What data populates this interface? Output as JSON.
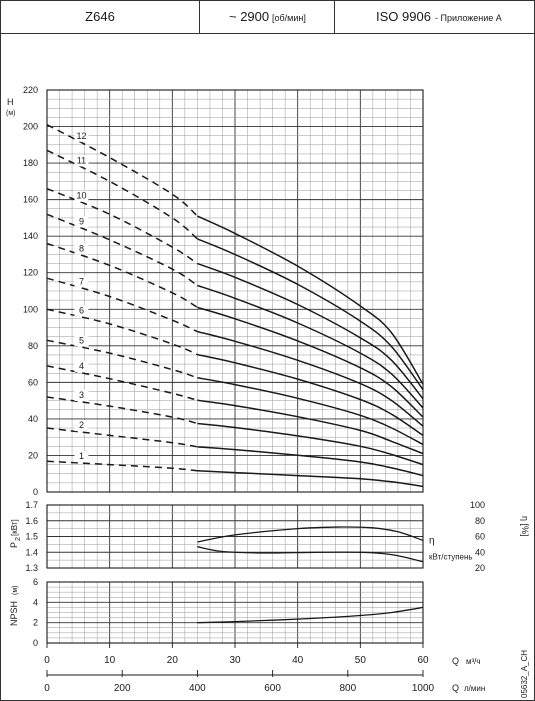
{
  "header": {
    "model": "Z646",
    "speed_value": "~ 2900",
    "speed_unit": "[об/мин]",
    "standard": "ISO 9906",
    "standard_note": "- Приложение А"
  },
  "side_code": "05632_A_CH",
  "colors": {
    "ink": "#1a1a1a",
    "grid_major": "#333333",
    "grid_minor": "#9a9a9a",
    "background": "#ffffff"
  },
  "chart_data": [
    {
      "id": "head",
      "type": "line",
      "ylabel": "H",
      "yunit": "(м)",
      "xlim": [
        0,
        60
      ],
      "ylim": [
        0,
        220
      ],
      "yticks": [
        0,
        20,
        40,
        60,
        80,
        100,
        120,
        140,
        160,
        180,
        200,
        220
      ],
      "grid": true,
      "operating_range_q": [
        24,
        60
      ],
      "series": [
        {
          "name": "1",
          "x": [
            0,
            10,
            20,
            24,
            30,
            40,
            50,
            55,
            60
          ],
          "y": [
            16.8,
            15.0,
            13.0,
            11.6,
            10.6,
            9.0,
            7.2,
            5.6,
            3.0
          ]
        },
        {
          "name": "2",
          "x": [
            0,
            10,
            20,
            24,
            30,
            40,
            50,
            55,
            60
          ],
          "y": [
            35.0,
            31.0,
            27.0,
            24.7,
            23.2,
            20.1,
            16.4,
            13.2,
            9.0
          ]
        },
        {
          "name": "3",
          "x": [
            0,
            10,
            20,
            24,
            30,
            40,
            50,
            55,
            60
          ],
          "y": [
            52.0,
            47.0,
            41.0,
            37.5,
            35.3,
            30.7,
            25.0,
            20.5,
            15.0
          ]
        },
        {
          "name": "4",
          "x": [
            0,
            10,
            20,
            24,
            30,
            40,
            50,
            55,
            60
          ],
          "y": [
            69.0,
            62.0,
            54.0,
            50.2,
            47.3,
            41.2,
            33.7,
            27.7,
            21.0
          ]
        },
        {
          "name": "5",
          "x": [
            0,
            10,
            20,
            24,
            30,
            40,
            50,
            55,
            60
          ],
          "y": [
            83.0,
            76.0,
            67.0,
            62.5,
            58.8,
            51.3,
            42.0,
            35.0,
            26.0
          ]
        },
        {
          "name": "6",
          "x": [
            0,
            10,
            20,
            24,
            30,
            40,
            50,
            55,
            60
          ],
          "y": [
            100.0,
            92.0,
            81.0,
            75.2,
            70.7,
            61.8,
            50.6,
            42.5,
            31.0
          ]
        },
        {
          "name": "7",
          "x": [
            0,
            10,
            20,
            24,
            30,
            40,
            50,
            55,
            60
          ],
          "y": [
            117.0,
            107.0,
            94.0,
            87.8,
            82.5,
            72.1,
            59.3,
            50.0,
            36.0
          ]
        },
        {
          "name": "8",
          "x": [
            0,
            10,
            20,
            24,
            30,
            40,
            50,
            55,
            60
          ],
          "y": [
            136.0,
            124.0,
            109.0,
            101.0,
            94.8,
            82.7,
            68.0,
            57.5,
            41.0
          ]
        },
        {
          "name": "9",
          "x": [
            0,
            10,
            20,
            24,
            30,
            40,
            50,
            55,
            60
          ],
          "y": [
            152.0,
            138.0,
            122.0,
            113.0,
            106.0,
            92.5,
            76.0,
            64.5,
            46.0
          ]
        },
        {
          "name": "10",
          "x": [
            0,
            10,
            20,
            24,
            30,
            40,
            50,
            55,
            60
          ],
          "y": [
            166.0,
            152.0,
            134.0,
            125.0,
            117.5,
            102.6,
            84.4,
            72.0,
            51.0
          ]
        },
        {
          "name": "11",
          "x": [
            0,
            10,
            20,
            24,
            30,
            40,
            50,
            55,
            60
          ],
          "y": [
            187.0,
            170.0,
            150.0,
            138.5,
            130.0,
            113.6,
            93.5,
            79.5,
            56.0
          ]
        },
        {
          "name": "12",
          "x": [
            0,
            10,
            20,
            24,
            30,
            40,
            50,
            55,
            60
          ],
          "y": [
            201.0,
            183.0,
            163.0,
            151.0,
            141.5,
            123.6,
            101.8,
            87.0,
            59.0
          ]
        }
      ]
    },
    {
      "id": "power_efficiency",
      "type": "line",
      "ylabel": "P",
      "ylabel_sub": "2",
      "yunit": "[кВт]",
      "ylim": [
        1.3,
        1.7
      ],
      "yticks": [
        1.3,
        1.4,
        1.5,
        1.6,
        1.7
      ],
      "y2label": "η [%]",
      "y2lim": [
        20,
        100
      ],
      "y2ticks": [
        20,
        40,
        60,
        80,
        100
      ],
      "grid": true,
      "series": [
        {
          "name": "η",
          "axis": "right",
          "x": [
            24,
            30,
            40,
            47,
            52,
            56,
            60
          ],
          "y": [
            53.0,
            62.0,
            70.0,
            72.0,
            71.0,
            66.0,
            55.0
          ]
        },
        {
          "name": "кВт/ступень",
          "axis": "left",
          "x": [
            24,
            28,
            35,
            43,
            50,
            55,
            60
          ],
          "y": [
            1.435,
            1.405,
            1.395,
            1.4,
            1.4,
            1.385,
            1.34
          ]
        }
      ]
    },
    {
      "id": "npsh",
      "type": "line",
      "ylabel": "NPSH",
      "yunit": "(м)",
      "ylim": [
        0,
        6
      ],
      "yticks": [
        0,
        2,
        4,
        6
      ],
      "grid": true,
      "series": [
        {
          "x": [
            24,
            30,
            40,
            50,
            55,
            60
          ],
          "y": [
            2.0,
            2.1,
            2.35,
            2.7,
            3.0,
            3.5
          ]
        }
      ]
    }
  ],
  "x_axes": {
    "q_m3h": {
      "label": "Q",
      "unit": "м³/ч",
      "ticks": [
        0,
        10,
        20,
        30,
        40,
        50,
        60
      ]
    },
    "q_lmin": {
      "label": "Q",
      "unit": "л/мин",
      "ticks": [
        0,
        200,
        400,
        600,
        800,
        1000
      ],
      "per_m3h": 16.6667
    }
  }
}
